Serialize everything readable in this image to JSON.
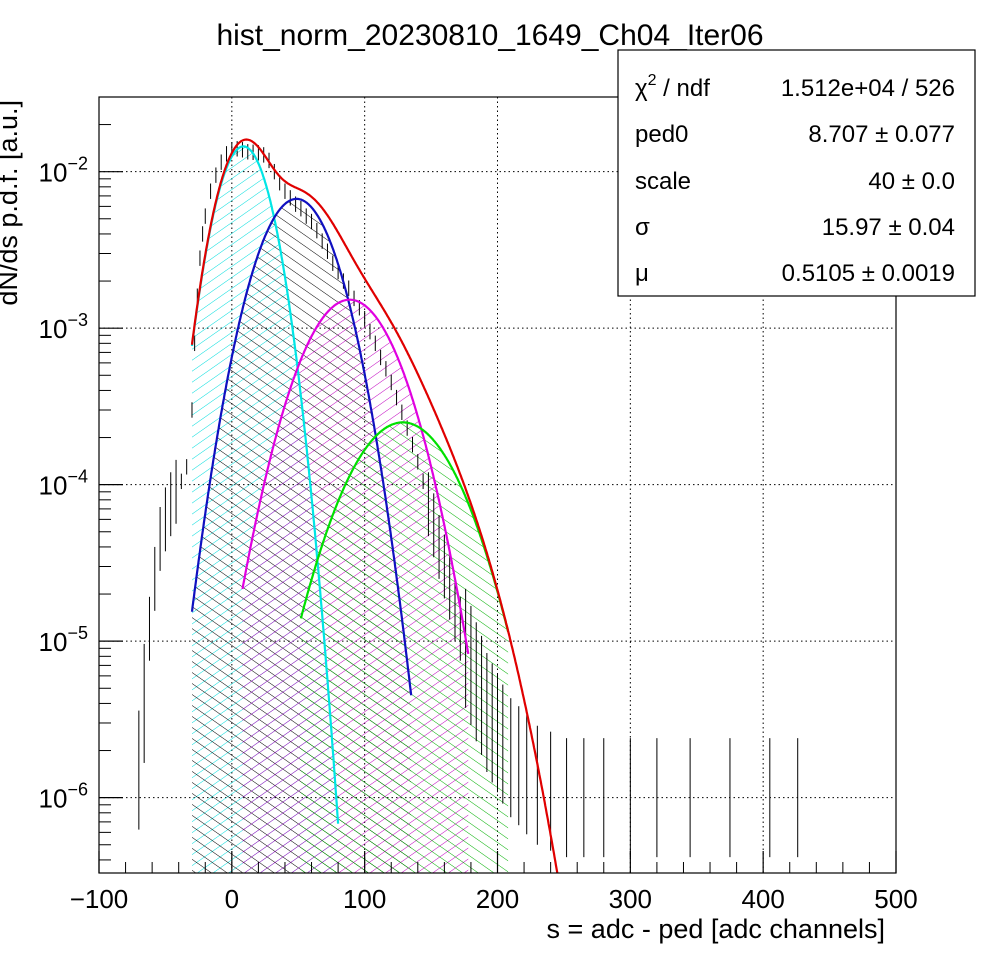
{
  "chart_data": {
    "type": "line",
    "title": "hist_norm_20230810_1649_Ch04_Iter06",
    "xlabel": "s = adc - ped [adc channels]",
    "ylabel": "dN/ds p.d.f. [a.u.]",
    "xlim": [
      -100,
      500
    ],
    "ylim": [
      3.3e-07,
      0.03
    ],
    "yscale": "log",
    "grid": true,
    "x_ticks": [
      -100,
      0,
      100,
      200,
      300,
      400,
      500
    ],
    "x_tick_labels": [
      "−100",
      "0",
      "100",
      "200",
      "300",
      "400",
      "500"
    ],
    "y_ticks": [
      1e-06,
      1e-05,
      0.0001,
      0.001,
      0.01
    ],
    "y_tick_labels": [
      {
        "base": "10",
        "exp": "−6"
      },
      {
        "base": "10",
        "exp": "−5"
      },
      {
        "base": "10",
        "exp": "−4"
      },
      {
        "base": "10",
        "exp": "−3"
      },
      {
        "base": "10",
        "exp": "−2"
      }
    ],
    "fit": {
      "ped0": 8.707,
      "scale": 40,
      "sigma": 15.97,
      "mu": 0.5105,
      "p0": 0.0145
    },
    "components": [
      {
        "color": "#00e5e5",
        "hatch": "#00dddd",
        "mean": 8.707,
        "sigma": 15.97,
        "peak": 0.0145,
        "x_range": [
          -30,
          80
        ]
      },
      {
        "color": "#1010c0",
        "hatch": "#000000",
        "mean": 48.707,
        "sigma": 22.58,
        "peak": 0.0067,
        "x_range": [
          -30,
          135
        ]
      },
      {
        "color": "#e000e0",
        "hatch": "#c000c0",
        "mean": 88.707,
        "sigma": 27.66,
        "peak": 0.00152,
        "x_range": [
          8,
          178
        ]
      },
      {
        "color": "#00e000",
        "hatch": "#00b000",
        "mean": 128.707,
        "sigma": 31.94,
        "peak": 0.00025,
        "x_range": [
          52,
          208
        ]
      }
    ],
    "total_fit": {
      "color": "#e00000",
      "x_range": [
        -30,
        270
      ]
    },
    "data_points": [
      [
        -70,
        1.5e-06
      ],
      [
        -66,
        4e-06
      ],
      [
        -62,
        1.2e-05
      ],
      [
        -58,
        2.5e-05
      ],
      [
        -54,
        4.5e-05
      ],
      [
        -50,
        6e-05
      ],
      [
        -46,
        7.5e-05
      ],
      [
        -42,
        9e-05
      ],
      [
        -38,
        0.000105
      ],
      [
        -34,
        0.00013
      ],
      [
        -30,
        0.0003
      ],
      [
        -28,
        0.0008
      ],
      [
        -26,
        0.0016
      ],
      [
        -24,
        0.0028
      ],
      [
        -22,
        0.004
      ],
      [
        -20,
        0.0052
      ],
      [
        -16,
        0.0075
      ],
      [
        -12,
        0.0095
      ],
      [
        -8,
        0.0115
      ],
      [
        -4,
        0.013
      ],
      [
        0,
        0.0138
      ],
      [
        4,
        0.014
      ],
      [
        8,
        0.0138
      ],
      [
        12,
        0.0134
      ],
      [
        16,
        0.0133
      ],
      [
        20,
        0.0132
      ],
      [
        24,
        0.0128
      ],
      [
        28,
        0.0118
      ],
      [
        32,
        0.01
      ],
      [
        36,
        0.0085
      ],
      [
        40,
        0.0075
      ],
      [
        44,
        0.0068
      ],
      [
        48,
        0.0062
      ],
      [
        52,
        0.0058
      ],
      [
        56,
        0.0052
      ],
      [
        60,
        0.0048
      ],
      [
        64,
        0.0042
      ],
      [
        68,
        0.0036
      ],
      [
        72,
        0.0031
      ],
      [
        76,
        0.0026
      ],
      [
        80,
        0.0023
      ],
      [
        84,
        0.002
      ],
      [
        88,
        0.0018
      ],
      [
        92,
        0.00155
      ],
      [
        96,
        0.00135
      ],
      [
        100,
        0.00115
      ],
      [
        104,
        0.00095
      ],
      [
        108,
        0.0008
      ],
      [
        112,
        0.00065
      ],
      [
        116,
        0.00055
      ],
      [
        120,
        0.00045
      ],
      [
        124,
        0.00036
      ],
      [
        128,
        0.00029
      ],
      [
        132,
        0.00023
      ],
      [
        136,
        0.00018
      ],
      [
        140,
        0.00014
      ],
      [
        144,
        0.000105
      ],
      [
        148,
        7.5e-05
      ],
      [
        152,
        5.5e-05
      ],
      [
        156,
        4e-05
      ],
      [
        160,
        3e-05
      ],
      [
        164,
        2.2e-05
      ],
      [
        168,
        1.6e-05
      ],
      [
        172,
        1.2e-05
      ],
      [
        176,
        9e-06
      ],
      [
        180,
        7e-06
      ],
      [
        184,
        5.5e-06
      ],
      [
        188,
        4.5e-06
      ],
      [
        192,
        3.5e-06
      ],
      [
        196,
        3e-06
      ],
      [
        200,
        2.6e-06
      ],
      [
        204,
        2.2e-06
      ],
      [
        210,
        1.8e-06
      ],
      [
        216,
        1.6e-06
      ],
      [
        222,
        1.4e-06
      ],
      [
        230,
        1.2e-06
      ],
      [
        240,
        1.1e-06
      ],
      [
        252,
        1e-06
      ],
      [
        265,
        1e-06
      ],
      [
        280,
        1e-06
      ],
      [
        300,
        1e-06
      ],
      [
        320,
        1e-06
      ],
      [
        345,
        1e-06
      ],
      [
        375,
        1e-06
      ],
      [
        405,
        1e-06
      ],
      [
        426,
        1e-06
      ]
    ],
    "stats_box": {
      "rows": [
        {
          "label": "χ",
          "label_sup": "2",
          "label_rest": " / ndf",
          "value": "1.512e+04 / 526"
        },
        {
          "label": "ped0",
          "label_sup": "",
          "label_rest": "",
          "value": "8.707 ± 0.077"
        },
        {
          "label": "scale",
          "label_sup": "",
          "label_rest": "",
          "value": "40 ± 0.0"
        },
        {
          "label": "σ",
          "label_sup": "",
          "label_rest": "",
          "value": "15.97 ± 0.04"
        },
        {
          "label": "μ",
          "label_sup": "",
          "label_rest": "",
          "value": "0.5105 ± 0.0019"
        }
      ]
    },
    "colors": {
      "data": "#000000",
      "grid": "#000000",
      "frame": "#000000"
    }
  }
}
